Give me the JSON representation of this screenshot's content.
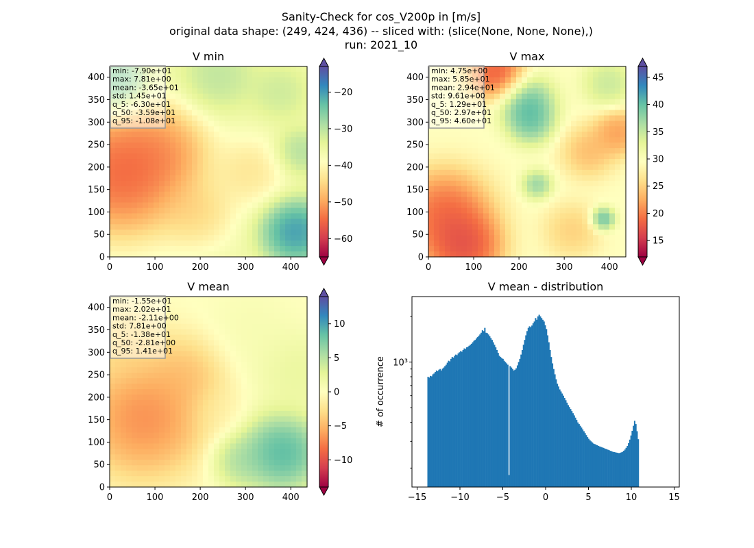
{
  "figure": {
    "title_lines": [
      "Sanity-Check for cos_V200p in [m/s]",
      "original data shape: (249, 424, 436) -- sliced with: (slice(None, None, None),)",
      "run: 2021_10"
    ]
  },
  "colormap": {
    "name": "Spectral",
    "stops": [
      "#9e0142",
      "#d53e4f",
      "#f46d43",
      "#fdae61",
      "#fee08b",
      "#ffffbf",
      "#e6f598",
      "#abdda4",
      "#66c2a5",
      "#3288bd",
      "#5e4fa2"
    ]
  },
  "chart_data": [
    {
      "type": "heatmap",
      "title": "V min",
      "xlim": [
        0,
        436
      ],
      "ylim": [
        0,
        424
      ],
      "x_ticks": [
        0,
        100,
        200,
        300,
        400
      ],
      "y_ticks": [
        0,
        50,
        100,
        150,
        200,
        250,
        300,
        350,
        400
      ],
      "colorbar": {
        "range": [
          -65,
          -13
        ],
        "ticks": [
          -60,
          -50,
          -40,
          -30,
          -20
        ],
        "tick_labels": [
          "−60",
          "−50",
          "−40",
          "−30",
          "−20"
        ],
        "extend": "both"
      },
      "stats_box": [
        "min: -7.90e+01",
        "max: 7.81e+00",
        "mean: -3.65e+01",
        "std: 1.45e+01",
        "q_5: -6.30e+01",
        "q_50: -3.59e+01",
        "q_95: -1.08e+01"
      ]
    },
    {
      "type": "heatmap",
      "title": "V max",
      "xlim": [
        0,
        436
      ],
      "ylim": [
        0,
        424
      ],
      "x_ticks": [
        0,
        100,
        200,
        300,
        400
      ],
      "y_ticks": [
        0,
        50,
        100,
        150,
        200,
        250,
        300,
        350,
        400
      ],
      "colorbar": {
        "range": [
          12,
          47
        ],
        "ticks": [
          15,
          20,
          25,
          30,
          35,
          40,
          45
        ],
        "tick_labels": [
          "15",
          "20",
          "25",
          "30",
          "35",
          "40",
          "45"
        ],
        "extend": "both"
      },
      "stats_box": [
        "min: 4.75e+00",
        "max: 5.85e+01",
        "mean: 2.94e+01",
        "std: 9.61e+00",
        "q_5: 1.29e+01",
        "q_50: 2.97e+01",
        "q_95: 4.60e+01"
      ]
    },
    {
      "type": "heatmap",
      "title": "V mean",
      "xlim": [
        0,
        436
      ],
      "ylim": [
        0,
        424
      ],
      "x_ticks": [
        0,
        100,
        200,
        300,
        400
      ],
      "y_ticks": [
        0,
        50,
        100,
        150,
        200,
        250,
        300,
        350,
        400
      ],
      "colorbar": {
        "range": [
          -14,
          14
        ],
        "ticks": [
          -10,
          -5,
          0,
          5,
          10
        ],
        "tick_labels": [
          "−10",
          "−5",
          "0",
          "5",
          "10"
        ],
        "extend": "both"
      },
      "stats_box": [
        "min: -1.55e+01",
        "max: 2.02e+01",
        "mean: -2.11e+00",
        "std: 7.81e+00",
        "q_5: -1.38e+01",
        "q_50: -2.81e+00",
        "q_95: 1.41e+01"
      ]
    },
    {
      "type": "bar",
      "title": "V mean - distribution",
      "ylabel": "# of occurrence",
      "yscale": "log",
      "xlim": [
        -15.6,
        15.6
      ],
      "ylim": [
        150,
        2700
      ],
      "x_ticks": [
        -15,
        -10,
        -5,
        0,
        5,
        10,
        15
      ],
      "x_tick_labels": [
        "−15",
        "−10",
        "−5",
        "0",
        "5",
        "10",
        "15"
      ],
      "y_major_ticks": [
        1000
      ],
      "y_major_tick_labels": [
        "10³"
      ],
      "y_minor_ticks": [
        200,
        300,
        400,
        500,
        600,
        700,
        800,
        900,
        2000
      ],
      "bar_color": "#1f77b4",
      "bin_width": 0.141,
      "bin_centers_from": -13.73,
      "bin_values": [
        800,
        790,
        810,
        805,
        830,
        840,
        860,
        880,
        870,
        890,
        900,
        880,
        905,
        920,
        940,
        960,
        990,
        1020,
        1010,
        1050,
        1080,
        1070,
        1100,
        1120,
        1110,
        1140,
        1160,
        1180,
        1170,
        1200,
        1230,
        1220,
        1250,
        1260,
        1280,
        1300,
        1320,
        1350,
        1380,
        1400,
        1430,
        1460,
        1490,
        1520,
        1560,
        1620,
        1600,
        1680,
        1560,
        1550,
        1520,
        1480,
        1440,
        1400,
        1350,
        1300,
        1250,
        1200,
        1150,
        1100,
        1080,
        1060,
        1050,
        1020,
        1000,
        980,
        960,
        180,
        940,
        920,
        900,
        880,
        890,
        910,
        950,
        1000,
        1050,
        1120,
        1200,
        1300,
        1400,
        1500,
        1600,
        1680,
        1720,
        1700,
        1740,
        1800,
        1850,
        1950,
        1900,
        2000,
        2050,
        2000,
        1950,
        1900,
        1850,
        1750,
        1650,
        1500,
        1350,
        1200,
        1080,
        980,
        900,
        830,
        770,
        720,
        690,
        660,
        640,
        620,
        600,
        580,
        560,
        540,
        520,
        505,
        490,
        475,
        460,
        445,
        430,
        415,
        400,
        390,
        380,
        370,
        360,
        350,
        340,
        330,
        320,
        312,
        305,
        300,
        295,
        290,
        288,
        285,
        283,
        280,
        278,
        276,
        274,
        272,
        270,
        268,
        266,
        264,
        262,
        260,
        258,
        256,
        255,
        254,
        253,
        252,
        251,
        252,
        254,
        256,
        260,
        265,
        272,
        280,
        292,
        308,
        328,
        352,
        380,
        410,
        390,
        350,
        310
      ]
    }
  ]
}
